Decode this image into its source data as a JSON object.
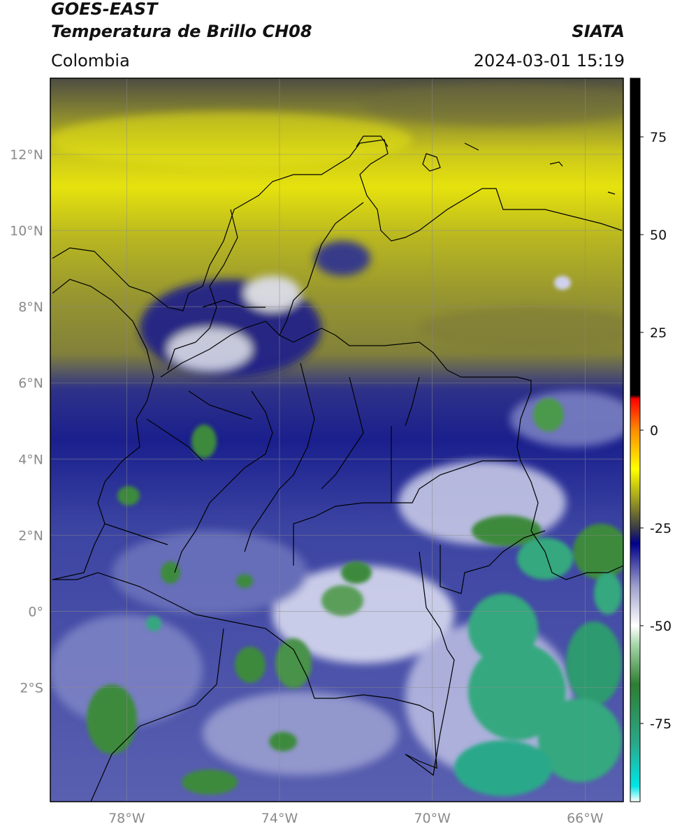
{
  "header": {
    "satellite": "GOES-EAST",
    "product": "Temperatura de Brillo CH08",
    "region": "Colombia",
    "agency": "SIATA",
    "timestamp": "2024-03-01 15:19"
  },
  "map": {
    "lat_range": [
      -5,
      14
    ],
    "lon_range": [
      -80,
      -65
    ],
    "lat_ticks": [
      {
        "value": 12,
        "label": "12°N"
      },
      {
        "value": 10,
        "label": "10°N"
      },
      {
        "value": 8,
        "label": "8°N"
      },
      {
        "value": 6,
        "label": "6°N"
      },
      {
        "value": 4,
        "label": "4°N"
      },
      {
        "value": 2,
        "label": "2°N"
      },
      {
        "value": 0,
        "label": "0°"
      },
      {
        "value": -2,
        "label": "2°S"
      }
    ],
    "lon_ticks": [
      {
        "value": -78,
        "label": "78°W"
      },
      {
        "value": -74,
        "label": "74°W"
      },
      {
        "value": -70,
        "label": "70°W"
      },
      {
        "value": -66,
        "label": "66°W"
      }
    ],
    "gridlines": true
  },
  "colorbar": {
    "range": [
      -95,
      90
    ],
    "ticks": [
      {
        "value": 75,
        "label": "75"
      },
      {
        "value": 50,
        "label": "50"
      },
      {
        "value": 25,
        "label": "25"
      },
      {
        "value": 0,
        "label": "0"
      },
      {
        "value": -25,
        "label": "-25"
      },
      {
        "value": -50,
        "label": "-50"
      },
      {
        "value": -75,
        "label": "-75"
      }
    ],
    "stops": [
      {
        "value": -95,
        "color": "#ffffff"
      },
      {
        "value": -91,
        "color": "#00e5e5"
      },
      {
        "value": -80,
        "color": "#2aa88a"
      },
      {
        "value": -65,
        "color": "#2e7d32"
      },
      {
        "value": -55,
        "color": "#a5d6a7"
      },
      {
        "value": -50,
        "color": "#ffffff"
      },
      {
        "value": -40,
        "color": "#9fa0cc"
      },
      {
        "value": -29,
        "color": "#00008b"
      },
      {
        "value": -25,
        "color": "#3a3a46"
      },
      {
        "value": -18,
        "color": "#9a9a20"
      },
      {
        "value": -10,
        "color": "#ffff00"
      },
      {
        "value": 0,
        "color": "#ff8c00"
      },
      {
        "value": 8,
        "color": "#ff0000"
      },
      {
        "value": 9,
        "color": "#000000"
      },
      {
        "value": 90,
        "color": "#000000"
      }
    ]
  },
  "colors": {
    "yellow": "#e6e20e",
    "olive": "#a8a625",
    "dark_olive": "#5a5a3e",
    "navy": "#1b1f8e",
    "mid_blue": "#5b62b2",
    "light_blue": "#aeb1d8",
    "green": "#3d8a3d",
    "teal": "#36a87f",
    "border": "#000000"
  }
}
